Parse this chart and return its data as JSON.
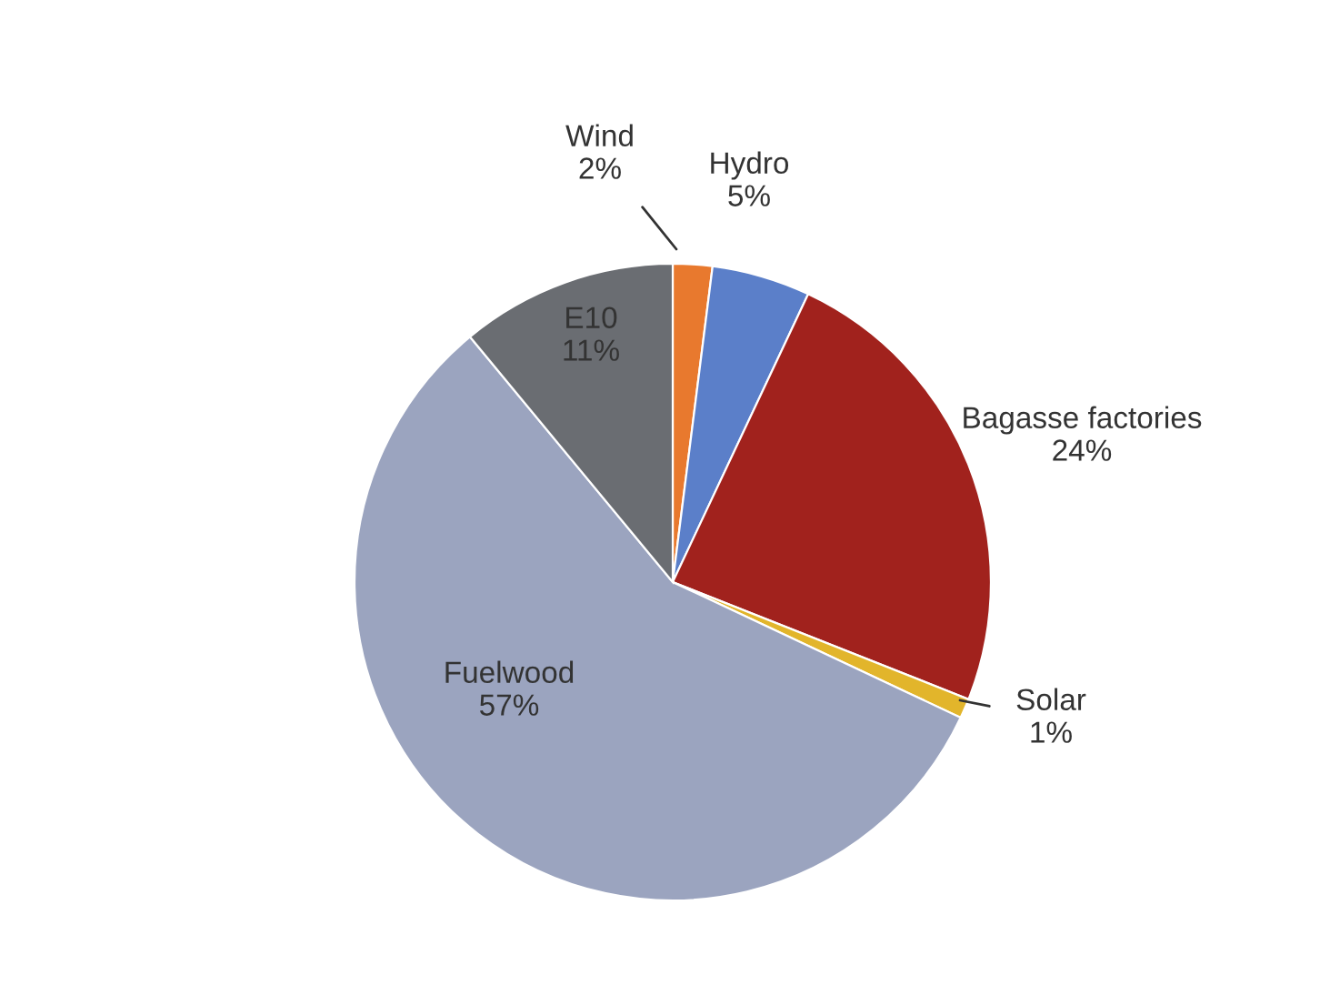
{
  "chart_data": {
    "type": "pie",
    "categories": [
      "Wind",
      "Hydro",
      "Bagasse factories",
      "Solar",
      "Fuelwood",
      "E10"
    ],
    "values": [
      2,
      5,
      24,
      1,
      57,
      11
    ],
    "value_labels": [
      "2%",
      "5%",
      "24%",
      "1%",
      "57%",
      "11%"
    ],
    "colors": [
      "#e8792e",
      "#5b7fc9",
      "#a1221d",
      "#e2b52b",
      "#9ba4bf",
      "#6a6d72"
    ]
  }
}
